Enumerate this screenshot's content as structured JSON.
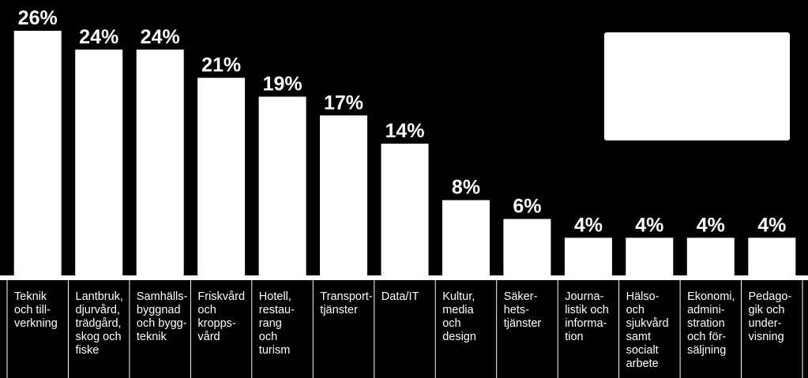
{
  "chart_data": {
    "type": "bar",
    "categories": [
      "Teknik\noch till-\nverkning",
      "Lantbruk,\ndjurvård,\nträdgård,\nskog och\nfiske",
      "Samhälls-\nbyggnad\noch bygg-\nteknik",
      "Friskvård\noch\nkropps-\nvård",
      "Hotell,\nrestau-\nrang\noch\nturism",
      "Transport-\ntjänster",
      "Data/IT",
      "Kultur,\nmedia\noch\ndesign",
      "Säker-\nhets-\ntjänster",
      "Journa-\nlistik och\ninforma-\ntion",
      "Hälso-\noch\nsjukvård\nsamt\nsocialt\narbete",
      "Ekonomi,\nadmini-\nstration\noch för-\nsäljning",
      "Pedago-\ngik och\nunder-\nvisning"
    ],
    "values": [
      26,
      24,
      24,
      21,
      19,
      17,
      14,
      8,
      6,
      4,
      4,
      4,
      4
    ],
    "value_labels": [
      "26%",
      "24%",
      "24%",
      "21%",
      "19%",
      "17%",
      "14%",
      "8%",
      "6%",
      "4%",
      "4%",
      "4%",
      "4%"
    ],
    "unit": "%",
    "ylim": [
      0,
      26
    ],
    "grid": false,
    "colors": {
      "background": "#000000",
      "bar": "#ffffff",
      "text": "#ffffff",
      "axis": "#ffffff"
    }
  }
}
